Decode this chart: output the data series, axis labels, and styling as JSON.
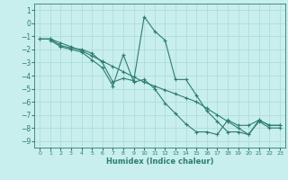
{
  "xlabel": "Humidex (Indice chaleur)",
  "xlim": [
    -0.5,
    23.5
  ],
  "ylim": [
    -9.5,
    1.5
  ],
  "yticks": [
    1,
    0,
    -1,
    -2,
    -3,
    -4,
    -5,
    -6,
    -7,
    -8,
    -9
  ],
  "xticks": [
    0,
    1,
    2,
    3,
    4,
    5,
    6,
    7,
    8,
    9,
    10,
    11,
    12,
    13,
    14,
    15,
    16,
    17,
    18,
    19,
    20,
    21,
    22,
    23
  ],
  "bg_color": "#c8eeed",
  "line_color": "#2e7d6e",
  "grid_color": "#b0ddd9",
  "lines": [
    {
      "x": [
        0,
        1,
        2,
        3,
        4,
        5,
        6,
        7,
        8,
        9,
        10,
        11,
        12,
        13,
        14,
        15,
        16,
        17,
        18,
        19,
        20,
        21,
        22,
        23
      ],
      "y": [
        -1.2,
        -1.2,
        -1.5,
        -1.8,
        -2.1,
        -2.5,
        -2.9,
        -3.3,
        -3.7,
        -4.1,
        -4.5,
        -4.8,
        -5.1,
        -5.4,
        -5.7,
        -6.0,
        -6.5,
        -7.0,
        -7.5,
        -8.0,
        -8.5,
        -7.5,
        -8.0,
        -8.0
      ]
    },
    {
      "x": [
        0,
        1,
        2,
        3,
        4,
        5,
        6,
        7,
        8,
        9,
        10,
        11,
        12,
        13,
        14,
        15,
        16,
        17,
        18,
        19,
        20,
        21,
        22,
        23
      ],
      "y": [
        -1.2,
        -1.2,
        -1.7,
        -1.9,
        -2.0,
        -2.3,
        -3.0,
        -4.5,
        -4.2,
        -4.4,
        0.5,
        -0.6,
        -1.3,
        -4.3,
        -4.3,
        -5.5,
        -6.7,
        -7.5,
        -8.3,
        -8.3,
        -8.5,
        -7.4,
        -7.8,
        -7.8
      ]
    },
    {
      "x": [
        1,
        2,
        3,
        4,
        5,
        6,
        7,
        8,
        9,
        10,
        11,
        12,
        13,
        14,
        15,
        16,
        17,
        18,
        19,
        20,
        21,
        22,
        23
      ],
      "y": [
        -1.3,
        -1.8,
        -2.0,
        -2.2,
        -2.8,
        -3.4,
        -4.8,
        -2.4,
        -4.5,
        -4.3,
        -5.0,
        -6.1,
        -6.9,
        -7.7,
        -8.3,
        -8.3,
        -8.5,
        -7.4,
        -7.8,
        -7.8,
        -7.4,
        -7.8,
        -7.8
      ]
    }
  ]
}
